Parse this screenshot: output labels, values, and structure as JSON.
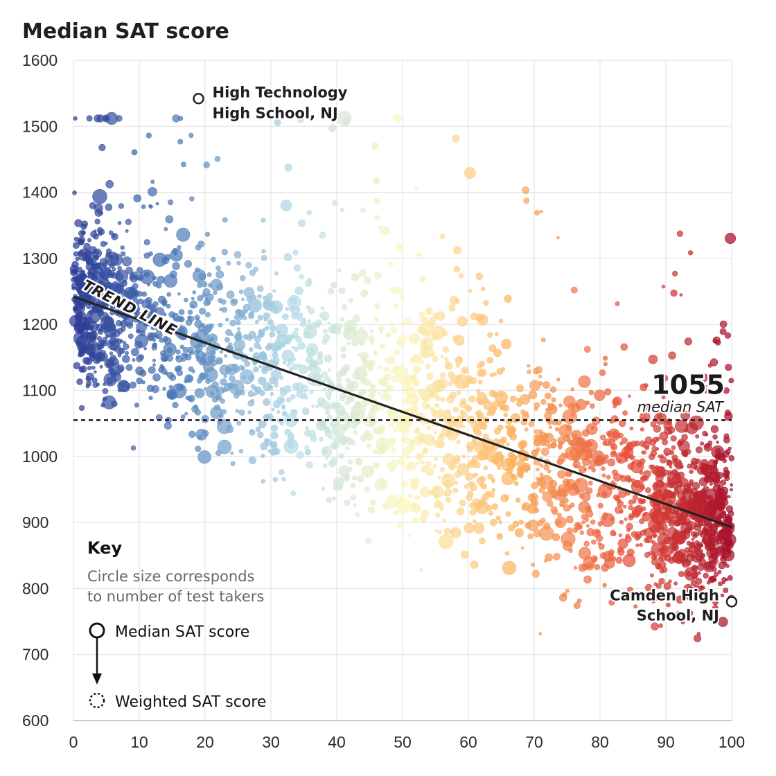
{
  "chart_data": {
    "type": "scatter",
    "title": "Median SAT score",
    "xlim": [
      0,
      100
    ],
    "ylim": [
      600,
      1600
    ],
    "x_ticks": [
      "0",
      "10",
      "20",
      "30",
      "40",
      "50",
      "60",
      "70",
      "80",
      "90",
      "100"
    ],
    "y_ticks": [
      "1600",
      "1500",
      "1400",
      "1300",
      "1200",
      "1100",
      "1000",
      "900",
      "800",
      "700",
      "600"
    ],
    "grid": true,
    "color_scale": [
      "#2c3b94",
      "#4f7fba",
      "#b5dbe8",
      "#fbf7be",
      "#fcb25e",
      "#e8533b",
      "#a50f2b"
    ],
    "trend_line": {
      "label": "TREND LINE",
      "x": [
        0,
        100
      ],
      "y": [
        1242,
        893
      ]
    },
    "median_line": {
      "value": "1055",
      "label": "median SAT",
      "y": 1055
    },
    "highlighted_points": [
      {
        "label_line1": "High Technology",
        "label_line2": "High School, NJ",
        "x": 19,
        "y": 1542
      },
      {
        "label_line1": "Camden High",
        "label_line2": "School, NJ",
        "x": 100,
        "y": 780
      }
    ]
  },
  "key": {
    "title": "Key",
    "note_line1": "Circle size corresponds",
    "note_line2": "to number of test takers",
    "median_label": "Median SAT score",
    "weighted_label": "Weighted SAT score"
  }
}
